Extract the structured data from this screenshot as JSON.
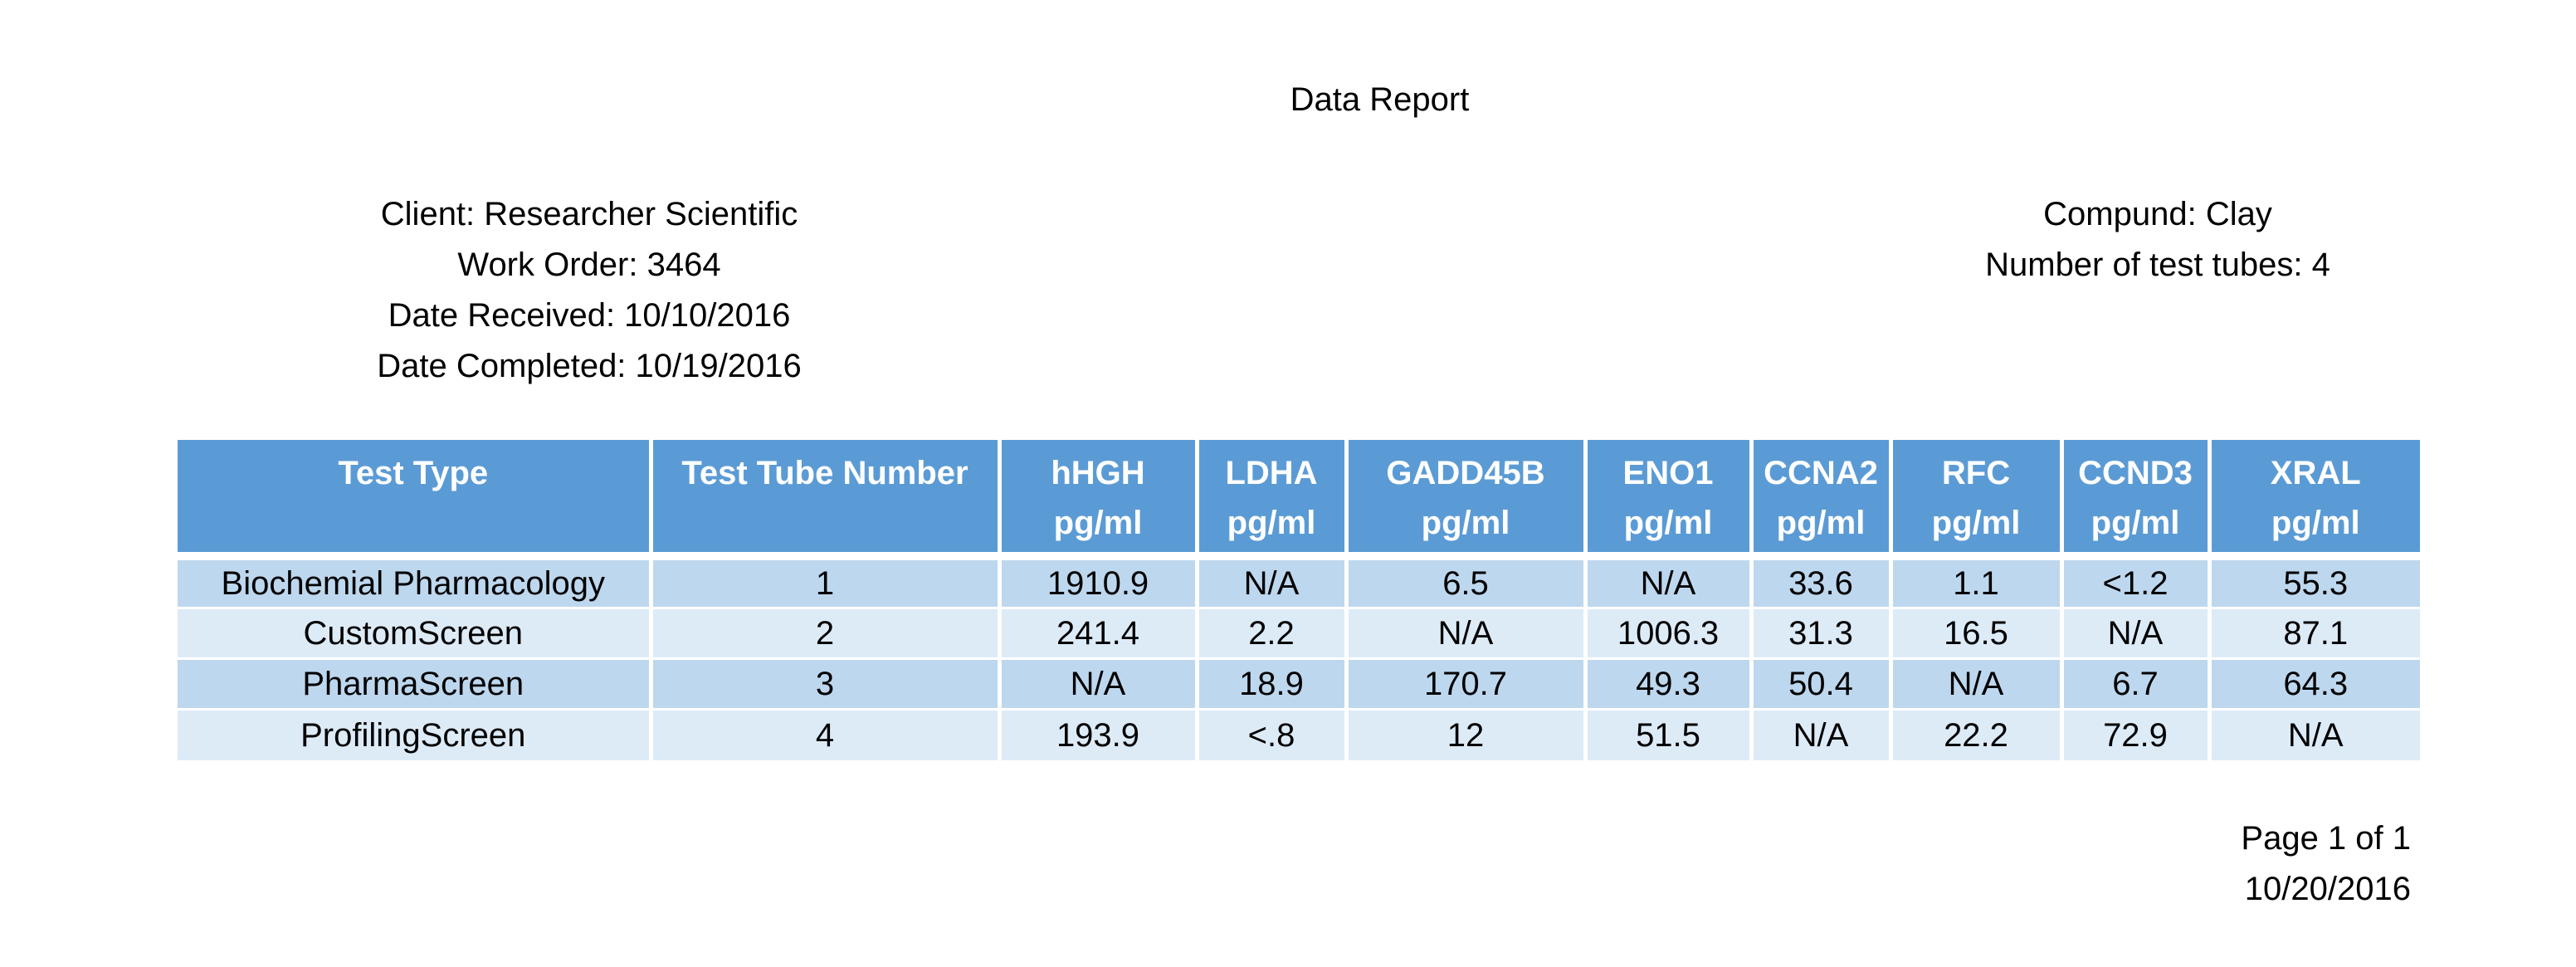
{
  "report": {
    "title": "Data Report",
    "client_info": [
      "Client: Researcher Scientific",
      "Work Order: 3464",
      "Date Received: 10/10/2016",
      "Date Completed: 10/19/2016"
    ],
    "compound_info": [
      "Compund: Clay",
      "Number of test tubes: 4"
    ],
    "table": {
      "headers": [
        [
          "Test Type",
          ""
        ],
        [
          "Test Tube Number",
          ""
        ],
        [
          "hHGH",
          "pg/ml"
        ],
        [
          "LDHA",
          "pg/ml"
        ],
        [
          "GADD45B",
          "pg/ml"
        ],
        [
          "ENO1",
          "pg/ml"
        ],
        [
          "CCNA2",
          "pg/ml"
        ],
        [
          "RFC",
          "pg/ml"
        ],
        [
          "CCND3",
          "pg/ml"
        ],
        [
          "XRAL",
          "pg/ml"
        ]
      ],
      "rows": [
        [
          "Biochemial Pharmacology",
          "1",
          "1910.9",
          "N/A",
          "6.5",
          "N/A",
          "33.6",
          "1.1",
          "<1.2",
          "55.3"
        ],
        [
          "CustomScreen",
          "2",
          "241.4",
          "2.2",
          "N/A",
          "1006.3",
          "31.3",
          "16.5",
          "N/A",
          "87.1"
        ],
        [
          "PharmaScreen",
          "3",
          "N/A",
          "18.9",
          "170.7",
          "49.3",
          "50.4",
          "N/A",
          "6.7",
          "64.3"
        ],
        [
          "ProfilingScreen",
          "4",
          "193.9",
          "<.8",
          "12",
          "51.5",
          "N/A",
          "22.2",
          "72.9",
          "N/A"
        ]
      ]
    },
    "footer": {
      "page": "Page 1 of 1",
      "date": "10/20/2016"
    },
    "colors": {
      "header_bg": "#5b9bd5",
      "row_odd_bg": "#bdd7ee",
      "row_even_bg": "#ddebf7"
    }
  }
}
